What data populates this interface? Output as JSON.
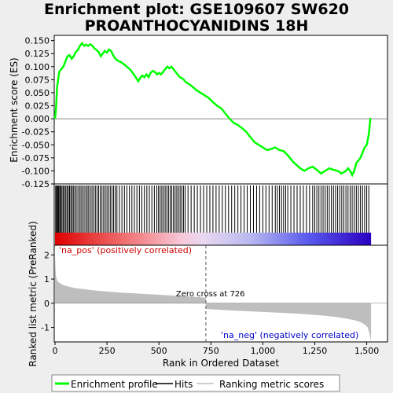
{
  "title_line1": "Enrichment plot: GSE109607 SW620",
  "title_line2": "PROANTHOCYANIDINS 18H",
  "colors": {
    "es_line": "#00ff00",
    "hits": "#000000",
    "metric_fill": "#bebebe",
    "pos_label": "#cc0000",
    "neg_label": "#0000cc"
  },
  "chart_data": {
    "type": "line",
    "x_range": [
      0,
      1600
    ],
    "n_genes": 1521,
    "x_ticks": [
      0,
      250,
      500,
      750,
      1000,
      1250,
      1500
    ],
    "x_tick_labels": [
      "0",
      "250",
      "500",
      "750",
      "1,000",
      "1,250",
      "1,500"
    ],
    "xlabel": "Rank in Ordered Dataset",
    "es_panel": {
      "ylabel": "Enrichment score (ES)",
      "ylim": [
        -0.125,
        0.16
      ],
      "y_ticks": [
        0.15,
        0.125,
        0.1,
        0.075,
        0.05,
        0.025,
        0.0,
        -0.025,
        -0.05,
        -0.075,
        -0.1,
        -0.125
      ],
      "y_tick_labels": [
        "0.150",
        "0.125",
        "0.100",
        "0.075",
        "0.050",
        "0.025",
        "0.000",
        "-0.025",
        "-0.050",
        "-0.075",
        "-0.100",
        "-0.125"
      ],
      "series": [
        {
          "x": [
            0,
            5,
            10,
            20,
            30,
            40,
            50,
            60,
            70,
            80,
            90,
            100,
            110,
            120,
            130,
            140,
            150,
            160,
            170,
            180,
            190,
            200,
            210,
            220,
            230,
            240,
            250,
            260,
            270,
            280,
            290,
            300,
            320,
            340,
            360,
            380,
            400,
            410,
            420,
            430,
            440,
            450,
            460,
            470,
            480,
            490,
            500,
            510,
            520,
            530,
            540,
            550,
            560,
            570,
            580,
            590,
            600,
            610,
            620,
            630,
            640,
            650,
            660,
            680,
            700,
            720,
            740,
            760,
            780,
            800,
            820,
            840,
            860,
            880,
            900,
            920,
            940,
            960,
            980,
            1000,
            1020,
            1040,
            1060,
            1080,
            1100,
            1120,
            1140,
            1160,
            1180,
            1200,
            1220,
            1240,
            1260,
            1280,
            1300,
            1320,
            1340,
            1360,
            1380,
            1400,
            1410,
            1420,
            1430,
            1440,
            1450,
            1460,
            1470,
            1480,
            1490,
            1500,
            1510,
            1515,
            1518,
            1521
          ],
          "y": [
            0.0,
            0.02,
            0.06,
            0.09,
            0.095,
            0.1,
            0.11,
            0.12,
            0.122,
            0.115,
            0.12,
            0.128,
            0.132,
            0.14,
            0.145,
            0.14,
            0.142,
            0.14,
            0.143,
            0.14,
            0.135,
            0.132,
            0.128,
            0.12,
            0.125,
            0.13,
            0.127,
            0.133,
            0.13,
            0.122,
            0.115,
            0.112,
            0.108,
            0.102,
            0.095,
            0.085,
            0.072,
            0.078,
            0.083,
            0.08,
            0.085,
            0.08,
            0.088,
            0.092,
            0.09,
            0.085,
            0.088,
            0.085,
            0.09,
            0.095,
            0.1,
            0.097,
            0.1,
            0.095,
            0.09,
            0.085,
            0.08,
            0.078,
            0.075,
            0.07,
            0.068,
            0.065,
            0.062,
            0.055,
            0.05,
            0.045,
            0.04,
            0.032,
            0.025,
            0.02,
            0.01,
            0.0,
            -0.008,
            -0.012,
            -0.018,
            -0.025,
            -0.035,
            -0.045,
            -0.05,
            -0.055,
            -0.06,
            -0.058,
            -0.055,
            -0.06,
            -0.062,
            -0.07,
            -0.08,
            -0.088,
            -0.095,
            -0.1,
            -0.095,
            -0.092,
            -0.098,
            -0.105,
            -0.1,
            -0.095,
            -0.098,
            -0.1,
            -0.105,
            -0.1,
            -0.095,
            -0.1,
            -0.108,
            -0.1,
            -0.085,
            -0.08,
            -0.075,
            -0.065,
            -0.055,
            -0.05,
            -0.03,
            -0.01,
            0.0,
            0.0
          ]
        }
      ]
    },
    "hits_panel": {
      "hit_ranks": [
        3,
        7,
        11,
        15,
        19,
        24,
        29,
        34,
        40,
        46,
        52,
        58,
        64,
        70,
        76,
        82,
        88,
        95,
        102,
        110,
        118,
        125,
        132,
        140,
        148,
        155,
        162,
        170,
        178,
        186,
        194,
        202,
        210,
        218,
        226,
        234,
        242,
        250,
        258,
        266,
        274,
        282,
        290,
        298,
        310,
        322,
        334,
        346,
        358,
        370,
        382,
        394,
        406,
        418,
        430,
        442,
        454,
        466,
        478,
        490,
        498,
        506,
        514,
        522,
        530,
        538,
        546,
        554,
        562,
        570,
        578,
        586,
        594,
        602,
        610,
        618,
        626,
        640,
        655,
        670,
        685,
        700,
        715,
        730,
        745,
        760,
        775,
        790,
        805,
        820,
        835,
        850,
        865,
        880,
        895,
        910,
        925,
        940,
        955,
        970,
        985,
        1000,
        1015,
        1030,
        1045,
        1060,
        1070,
        1080,
        1090,
        1100,
        1110,
        1120,
        1135,
        1150,
        1165,
        1180,
        1195,
        1210,
        1225,
        1240,
        1250,
        1260,
        1270,
        1280,
        1290,
        1300,
        1310,
        1320,
        1330,
        1340,
        1350,
        1360,
        1370,
        1380,
        1390,
        1400,
        1410,
        1420,
        1430,
        1440,
        1450,
        1460,
        1470,
        1480,
        1490,
        1500,
        1510
      ]
    },
    "metric_panel": {
      "ylabel": "Ranked list metric (PreRanked)",
      "ylim": [
        -1.6,
        2.4
      ],
      "y_ticks": [
        2,
        1,
        0,
        -1
      ],
      "y_tick_labels": [
        "2",
        "1",
        "0",
        "-1"
      ],
      "zero_cross": 726,
      "zero_cross_label": "Zero cross at 726",
      "pos_label": "'na_pos' (positively correlated)",
      "neg_label": "'na_neg' (negatively correlated)",
      "metric_x": [
        0,
        2,
        5,
        10,
        20,
        40,
        60,
        100,
        150,
        200,
        300,
        400,
        500,
        600,
        700,
        725,
        726,
        750,
        850,
        1000,
        1100,
        1200,
        1300,
        1350,
        1400,
        1440,
        1470,
        1490,
        1505,
        1512,
        1518,
        1521
      ],
      "metric_y": [
        2.0,
        1.5,
        1.1,
        0.95,
        0.85,
        0.75,
        0.7,
        0.62,
        0.57,
        0.52,
        0.45,
        0.4,
        0.35,
        0.3,
        0.25,
        0.22,
        -0.22,
        -0.25,
        -0.3,
        -0.36,
        -0.4,
        -0.45,
        -0.52,
        -0.57,
        -0.63,
        -0.7,
        -0.78,
        -0.88,
        -1.0,
        -1.2,
        -1.45,
        -1.6
      ]
    },
    "legend": {
      "placement": "bottom",
      "items": [
        "Enrichment profile",
        "Hits",
        "Ranking metric scores"
      ]
    }
  }
}
